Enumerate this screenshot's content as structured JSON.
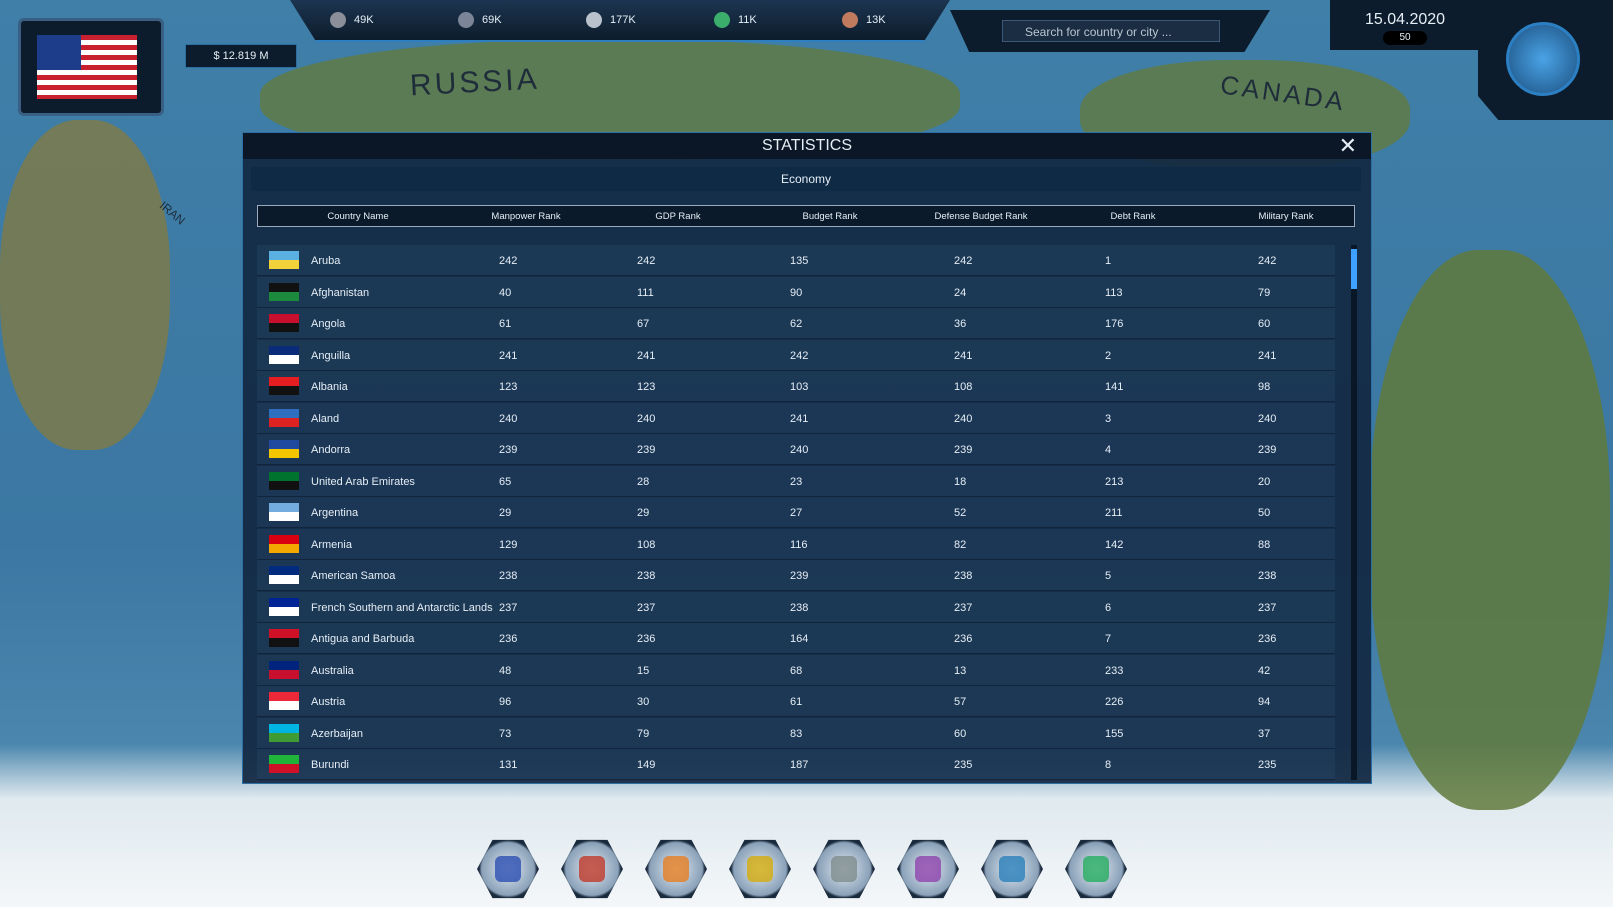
{
  "hud": {
    "money": "$ 12.819 M",
    "resources": [
      "49K",
      "69K",
      "177K",
      "11K",
      "13K"
    ],
    "search_placeholder": "Search for country or city ...",
    "date": "15.04.2020",
    "speed": "50"
  },
  "map_labels": [
    "RUSSIA",
    "CANADA",
    "IRAN"
  ],
  "window": {
    "title": "STATISTICS",
    "tab": "Economy",
    "columns": [
      "Country Name",
      "Manpower Rank",
      "GDP Rank",
      "Budget Rank",
      "Defense Budget Rank",
      "Debt Rank",
      "Military Rank"
    ],
    "rows": [
      [
        "Aruba",
        242,
        242,
        135,
        242,
        1,
        242
      ],
      [
        "Afghanistan",
        40,
        111,
        90,
        24,
        113,
        79
      ],
      [
        "Angola",
        61,
        67,
        62,
        36,
        176,
        60
      ],
      [
        "Anguilla",
        241,
        241,
        242,
        241,
        2,
        241
      ],
      [
        "Albania",
        123,
        123,
        103,
        108,
        141,
        98
      ],
      [
        "Aland",
        240,
        240,
        241,
        240,
        3,
        240
      ],
      [
        "Andorra",
        239,
        239,
        240,
        239,
        4,
        239
      ],
      [
        "United Arab Emirates",
        65,
        28,
        23,
        18,
        213,
        20
      ],
      [
        "Argentina",
        29,
        29,
        27,
        52,
        211,
        50
      ],
      [
        "Armenia",
        129,
        108,
        116,
        82,
        142,
        88
      ],
      [
        "American Samoa",
        238,
        238,
        239,
        238,
        5,
        238
      ],
      [
        "French Southern and Antarctic Lands",
        237,
        237,
        238,
        237,
        6,
        237
      ],
      [
        "Antigua and Barbuda",
        236,
        236,
        164,
        236,
        7,
        236
      ],
      [
        "Australia",
        48,
        15,
        68,
        13,
        233,
        42
      ],
      [
        "Austria",
        96,
        30,
        61,
        57,
        226,
        94
      ],
      [
        "Azerbaijan",
        73,
        79,
        83,
        60,
        155,
        37
      ],
      [
        "Burundi",
        131,
        149,
        187,
        235,
        8,
        235
      ]
    ]
  }
}
